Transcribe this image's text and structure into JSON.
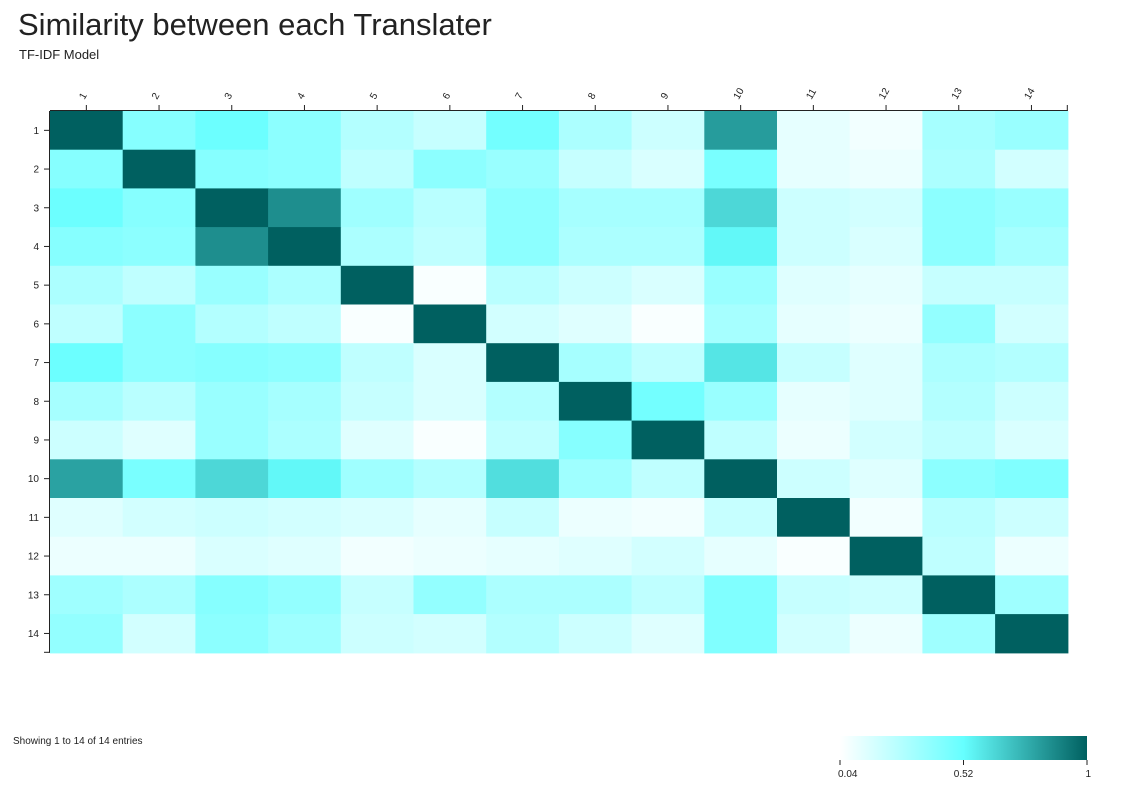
{
  "title": "Similarity between each Translater",
  "subtitle": "TF-IDF Model",
  "toolbar": [
    {
      "name": "pan-button",
      "icon": "move-arrows-icon",
      "active": true
    },
    {
      "name": "zoom-button",
      "icon": "magnifier-icon",
      "active": false
    },
    {
      "name": "collapse-button",
      "icon": "minus-box-icon",
      "active": false
    },
    {
      "name": "select-button",
      "icon": "checkbox-icon",
      "active": false
    },
    {
      "name": "fullscreen-button",
      "icon": "expand-icon",
      "active": false
    },
    {
      "name": "menu-button",
      "icon": "menu-lines-icon",
      "active": false
    }
  ],
  "footer": {
    "entries_text": "Showing 1 to 14 of 14 entries"
  },
  "colors": {
    "low": "#ffffff",
    "mid": "#66ffff",
    "high": "#006060"
  },
  "chart_data": {
    "type": "heatmap",
    "title": "Similarity between each Translater",
    "subtitle": "TF-IDF Model",
    "x_categories": [
      "1",
      "2",
      "3",
      "4",
      "5",
      "6",
      "7",
      "8",
      "9",
      "10",
      "11",
      "12",
      "13",
      "14"
    ],
    "y_categories": [
      "1",
      "2",
      "3",
      "4",
      "5",
      "6",
      "7",
      "8",
      "9",
      "10",
      "11",
      "12",
      "13",
      "14"
    ],
    "scale": {
      "min": 0.04,
      "mid": 0.52,
      "max": 1,
      "tick_labels": [
        "0.04",
        "0.52",
        "1"
      ]
    },
    "values": [
      [
        1.0,
        0.42,
        0.5,
        0.4,
        0.28,
        0.22,
        0.48,
        0.3,
        0.2,
        0.82,
        0.12,
        0.08,
        0.32,
        0.36
      ],
      [
        0.42,
        1.0,
        0.42,
        0.4,
        0.24,
        0.4,
        0.36,
        0.22,
        0.16,
        0.46,
        0.12,
        0.1,
        0.3,
        0.18
      ],
      [
        0.5,
        0.42,
        1.0,
        0.86,
        0.34,
        0.26,
        0.4,
        0.32,
        0.32,
        0.64,
        0.2,
        0.18,
        0.4,
        0.36
      ],
      [
        0.42,
        0.4,
        0.86,
        1.0,
        0.3,
        0.24,
        0.4,
        0.3,
        0.3,
        0.54,
        0.2,
        0.16,
        0.4,
        0.32
      ],
      [
        0.3,
        0.24,
        0.36,
        0.3,
        1.0,
        0.06,
        0.26,
        0.2,
        0.16,
        0.36,
        0.14,
        0.12,
        0.22,
        0.22
      ],
      [
        0.24,
        0.4,
        0.28,
        0.24,
        0.06,
        1.0,
        0.18,
        0.14,
        0.06,
        0.32,
        0.12,
        0.1,
        0.38,
        0.18
      ],
      [
        0.5,
        0.4,
        0.42,
        0.4,
        0.24,
        0.16,
        1.0,
        0.32,
        0.24,
        0.6,
        0.22,
        0.14,
        0.3,
        0.28
      ],
      [
        0.32,
        0.26,
        0.36,
        0.32,
        0.22,
        0.16,
        0.28,
        1.0,
        0.48,
        0.36,
        0.12,
        0.14,
        0.28,
        0.2
      ],
      [
        0.2,
        0.14,
        0.36,
        0.3,
        0.14,
        0.06,
        0.24,
        0.42,
        1.0,
        0.24,
        0.1,
        0.18,
        0.24,
        0.16
      ],
      [
        0.8,
        0.46,
        0.64,
        0.54,
        0.34,
        0.28,
        0.62,
        0.34,
        0.24,
        1.0,
        0.2,
        0.14,
        0.4,
        0.44
      ],
      [
        0.14,
        0.18,
        0.2,
        0.18,
        0.16,
        0.12,
        0.22,
        0.1,
        0.08,
        0.22,
        1.0,
        0.08,
        0.26,
        0.2
      ],
      [
        0.1,
        0.1,
        0.16,
        0.14,
        0.08,
        0.1,
        0.12,
        0.14,
        0.18,
        0.12,
        0.06,
        1.0,
        0.24,
        0.1
      ],
      [
        0.34,
        0.3,
        0.42,
        0.38,
        0.22,
        0.38,
        0.3,
        0.3,
        0.24,
        0.44,
        0.22,
        0.2,
        1.0,
        0.34
      ],
      [
        0.38,
        0.18,
        0.4,
        0.34,
        0.2,
        0.18,
        0.28,
        0.2,
        0.14,
        0.44,
        0.18,
        0.1,
        0.34,
        1.0
      ]
    ]
  }
}
